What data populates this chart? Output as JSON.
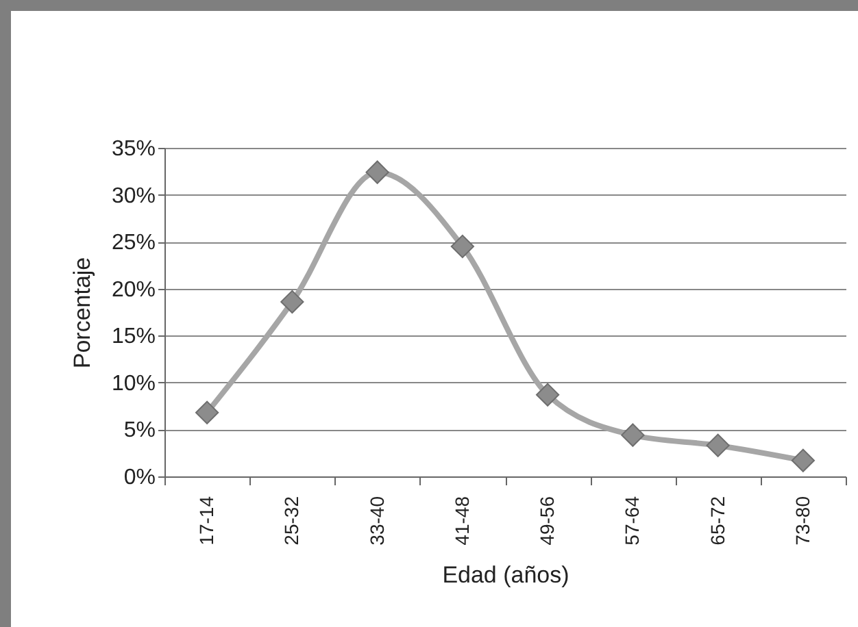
{
  "chart_data": {
    "type": "line",
    "xlabel": "Edad (años)",
    "ylabel": "Porcentaje",
    "categories": [
      "17-14",
      "25-32",
      "33-40",
      "41-48",
      "49-56",
      "57-64",
      "65-72",
      "73-80"
    ],
    "series": [
      {
        "color": "#a6a6a6",
        "values": [
          6.8,
          18.6,
          32.4,
          24.5,
          8.7,
          4.4,
          3.3,
          1.7
        ]
      }
    ],
    "ylim": [
      0,
      35
    ],
    "yticks": [
      {
        "value": 0,
        "label": "0%"
      },
      {
        "value": 5,
        "label": "5%"
      },
      {
        "value": 10,
        "label": "10%"
      },
      {
        "value": 15,
        "label": "15%"
      },
      {
        "value": 20,
        "label": "20%"
      },
      {
        "value": 25,
        "label": "25%"
      },
      {
        "value": 30,
        "label": "30%"
      },
      {
        "value": 35,
        "label": "35%"
      }
    ],
    "grid": "y",
    "marker": "diamond",
    "legend": false
  }
}
